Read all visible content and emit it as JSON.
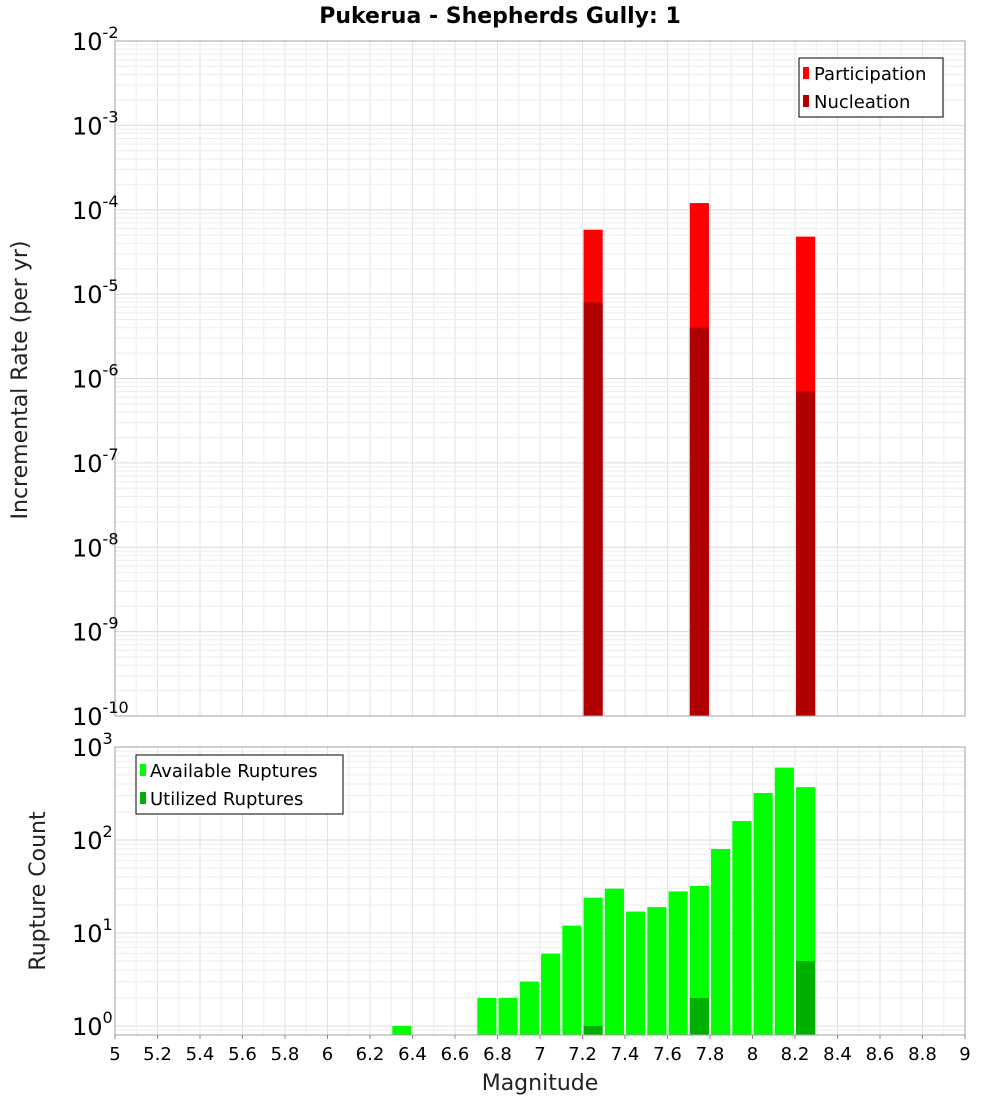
{
  "chart_data": [
    {
      "type": "bar",
      "title": "Pukerua - Shepherds Gully: 1",
      "xlabel": "Magnitude",
      "ylabel": "Incremental Rate (per yr)",
      "yscale": "log",
      "ylim": [
        1e-10,
        0.01
      ],
      "xlim": [
        5,
        9
      ],
      "bar_width": 0.09,
      "ytick_labels": [
        {
          "base": "10",
          "exp": "-10"
        },
        {
          "base": "10",
          "exp": "-9"
        },
        {
          "base": "10",
          "exp": "-8"
        },
        {
          "base": "10",
          "exp": "-7"
        },
        {
          "base": "10",
          "exp": "-6"
        },
        {
          "base": "10",
          "exp": "-5"
        },
        {
          "base": "10",
          "exp": "-4"
        },
        {
          "base": "10",
          "exp": "-3"
        },
        {
          "base": "10",
          "exp": "-2"
        }
      ],
      "legend_position": "top-right",
      "series": [
        {
          "name": "Participation",
          "color": "#ff0000",
          "x": [
            7.25,
            7.75,
            8.25
          ],
          "values": [
            5.8e-05,
            0.00012,
            4.8e-05
          ]
        },
        {
          "name": "Nucleation",
          "color": "#b00000",
          "x": [
            7.25,
            7.75,
            8.25
          ],
          "values": [
            8e-06,
            4e-06,
            7e-07
          ]
        }
      ]
    },
    {
      "type": "bar",
      "xlabel": "Magnitude",
      "ylabel": "Rupture Count",
      "yscale": "log",
      "ylim": [
        0.8,
        1000
      ],
      "xlim": [
        5,
        9
      ],
      "bar_width": 0.09,
      "ytick_labels": [
        {
          "base": "10",
          "exp": "0"
        },
        {
          "base": "10",
          "exp": "1"
        },
        {
          "base": "10",
          "exp": "2"
        },
        {
          "base": "10",
          "exp": "3"
        }
      ],
      "xtick_labels": [
        "5",
        "5.2",
        "5.4",
        "5.6",
        "5.8",
        "6",
        "6.2",
        "6.4",
        "6.6",
        "6.8",
        "7",
        "7.2",
        "7.4",
        "7.6",
        "7.8",
        "8",
        "8.2",
        "8.4",
        "8.6",
        "8.8",
        "9"
      ],
      "legend_position": "top-left",
      "series": [
        {
          "name": "Available Ruptures",
          "color": "#00ff00",
          "x": [
            6.35,
            6.75,
            6.85,
            6.95,
            7.05,
            7.15,
            7.25,
            7.35,
            7.45,
            7.55,
            7.65,
            7.75,
            7.85,
            7.95,
            8.05,
            8.15,
            8.25
          ],
          "values": [
            1,
            2,
            2,
            3,
            6,
            12,
            24,
            30,
            17,
            19,
            28,
            32,
            80,
            160,
            320,
            600,
            370
          ]
        },
        {
          "name": "Utilized Ruptures",
          "color": "#00b000",
          "x": [
            7.25,
            7.75,
            8.25
          ],
          "values": [
            1,
            2,
            5
          ]
        }
      ]
    }
  ]
}
